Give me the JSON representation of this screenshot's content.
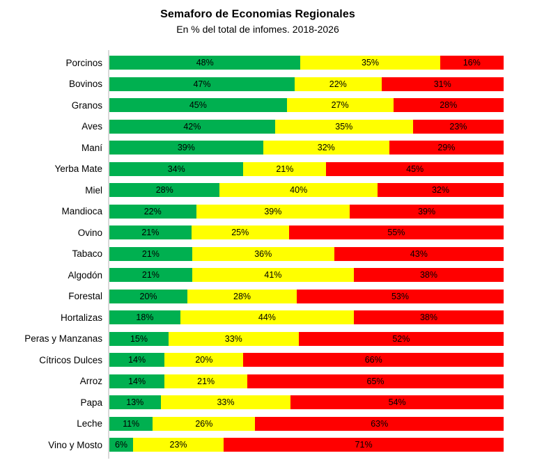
{
  "title": "Semaforo de Economias Regionales",
  "subtitle": "En % del total de infomes. 2018-2026",
  "colors": {
    "green": "#00B050",
    "yellow": "#FFFF00",
    "red": "#FF0000",
    "axis": "#D9D9D9",
    "label_text": "#000000"
  },
  "chart_data": {
    "type": "bar",
    "orientation": "horizontal",
    "stacked": true,
    "percent_stacked": true,
    "title": "Semaforo de Economias Regionales",
    "subtitle": "En % del total de infomes. 2018-2026",
    "legend": "none",
    "grid": false,
    "value_labels": "percent, centered in each segment",
    "xlim": [
      0,
      100
    ],
    "categories": [
      "Porcinos",
      "Bovinos",
      "Granos",
      "Aves",
      "Maní",
      "Yerba Mate",
      "Miel",
      "Mandioca",
      "Ovino",
      "Tabaco",
      "Algodón",
      "Forestal",
      "Hortalizas",
      "Peras y Manzanas",
      "Cítricos Dulces",
      "Arroz",
      "Papa",
      "Leche",
      "Vino y Mosto"
    ],
    "series": [
      {
        "name": "green",
        "color": "#00B050",
        "values": [
          48,
          47,
          45,
          42,
          39,
          34,
          28,
          22,
          21,
          21,
          21,
          20,
          18,
          15,
          14,
          14,
          13,
          11,
          6
        ]
      },
      {
        "name": "yellow",
        "color": "#FFFF00",
        "values": [
          35,
          22,
          27,
          35,
          32,
          21,
          40,
          39,
          25,
          36,
          41,
          28,
          44,
          33,
          20,
          21,
          33,
          26,
          23
        ]
      },
      {
        "name": "red",
        "color": "#FF0000",
        "values": [
          16,
          31,
          28,
          23,
          29,
          45,
          32,
          39,
          55,
          43,
          38,
          53,
          38,
          52,
          66,
          65,
          54,
          63,
          71
        ]
      }
    ]
  }
}
